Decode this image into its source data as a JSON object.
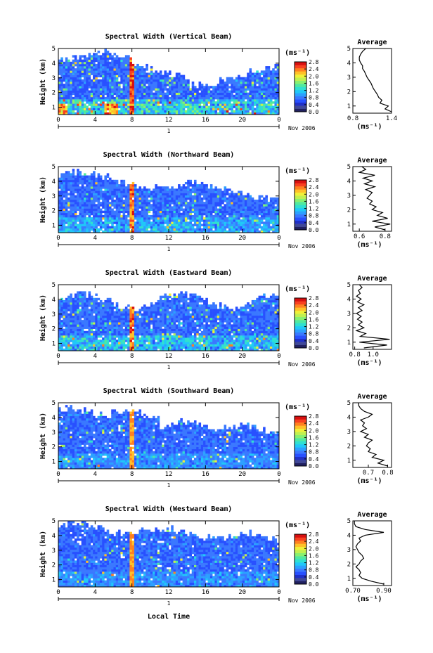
{
  "colormap": [
    "#202060",
    "#404898",
    "#2030c8",
    "#2850ff",
    "#3a78ff",
    "#2ca0ff",
    "#20c8f8",
    "#30e0d0",
    "#50e8a0",
    "#88f070",
    "#c0f050",
    "#f0f038",
    "#ffc028",
    "#ff8020",
    "#f84020",
    "#d81010"
  ],
  "xaxis_label": "Local Time",
  "date_label": "Nov 2006",
  "day_label": "1",
  "chart_data": [
    {
      "type": "heatmap",
      "title": "Spectral Width (Vertical Beam)",
      "ylabel": "Height (km)",
      "xlim": [
        0,
        24
      ],
      "ylim": [
        0.5,
        5
      ],
      "xticks": [
        "0",
        "4",
        "8",
        "12",
        "16",
        "20",
        "0"
      ],
      "yticks": [
        "1",
        "2",
        "3",
        "4",
        "5"
      ],
      "colorbar": {
        "unit": "(ms⁻¹)",
        "min": 0,
        "max": 2.8,
        "ticks": [
          "2.8",
          "2.4",
          "2.0",
          "1.6",
          "1.2",
          "0.8",
          "0.4",
          "0.0"
        ]
      },
      "avg_profile": {
        "title": "Average",
        "xlabel": "(ms⁻¹)",
        "xticks": [
          "0.8",
          "1.4"
        ],
        "xlim": [
          0.8,
          1.4
        ],
        "ylim": [
          0.5,
          5
        ],
        "heights": [
          0.6,
          0.8,
          1.0,
          1.2,
          1.4,
          1.6,
          1.8,
          2.0,
          2.2,
          2.4,
          2.6,
          2.8,
          3.0,
          3.2,
          3.4,
          3.6,
          3.8,
          4.0,
          4.2,
          4.4,
          4.6,
          4.8,
          5.0
        ],
        "values": [
          1.4,
          1.3,
          1.35,
          1.22,
          1.25,
          1.2,
          1.18,
          1.15,
          1.12,
          1.1,
          1.08,
          1.05,
          1.02,
          1.0,
          0.98,
          0.95,
          0.95,
          0.92,
          0.9,
          0.9,
          0.92,
          0.95,
          1.0
        ]
      }
    },
    {
      "type": "heatmap",
      "title": "Spectral Width (Northward Beam)",
      "ylabel": "Height (km)",
      "xlim": [
        0,
        24
      ],
      "ylim": [
        0.5,
        5
      ],
      "xticks": [
        "0",
        "4",
        "8",
        "12",
        "16",
        "20",
        "0"
      ],
      "yticks": [
        "1",
        "2",
        "3",
        "4",
        "5"
      ],
      "colorbar": {
        "unit": "(ms⁻¹)",
        "min": 0,
        "max": 2.8,
        "ticks": [
          "2.8",
          "2.4",
          "2.0",
          "1.6",
          "1.2",
          "0.8",
          "0.4",
          "0.0"
        ]
      },
      "avg_profile": {
        "title": "Average",
        "xlabel": "(ms⁻¹)",
        "xticks": [
          "0.6",
          "0.8"
        ],
        "xlim": [
          0.55,
          0.85
        ],
        "ylim": [
          0.5,
          5
        ],
        "heights": [
          0.6,
          0.8,
          1.0,
          1.2,
          1.4,
          1.6,
          1.8,
          2.0,
          2.2,
          2.4,
          2.6,
          2.8,
          3.0,
          3.2,
          3.4,
          3.6,
          3.8,
          4.0,
          4.2,
          4.4,
          4.6,
          4.8,
          5.0
        ],
        "values": [
          0.8,
          0.72,
          0.84,
          0.7,
          0.82,
          0.74,
          0.78,
          0.7,
          0.73,
          0.68,
          0.7,
          0.66,
          0.68,
          0.7,
          0.65,
          0.72,
          0.64,
          0.7,
          0.63,
          0.72,
          0.6,
          0.65,
          0.62
        ]
      }
    },
    {
      "type": "heatmap",
      "title": "Spectral Width (Eastward Beam)",
      "ylabel": "Height (km)",
      "xlim": [
        0,
        24
      ],
      "ylim": [
        0.5,
        5
      ],
      "xticks": [
        "0",
        "4",
        "8",
        "12",
        "16",
        "20",
        "0"
      ],
      "yticks": [
        "1",
        "2",
        "3",
        "4",
        "5"
      ],
      "colorbar": {
        "unit": "(ms⁻¹)",
        "min": 0,
        "max": 2.8,
        "ticks": [
          "2.8",
          "2.4",
          "2.0",
          "1.6",
          "1.2",
          "0.8",
          "0.4",
          "0.0"
        ]
      },
      "avg_profile": {
        "title": "Average",
        "xlabel": "(ms⁻¹)",
        "xticks": [
          "0.8",
          "1.0"
        ],
        "xlim": [
          0.78,
          1.2
        ],
        "ylim": [
          0.5,
          5
        ],
        "heights": [
          0.6,
          0.8,
          1.0,
          1.2,
          1.4,
          1.6,
          1.8,
          2.0,
          2.2,
          2.4,
          2.6,
          2.8,
          3.0,
          3.2,
          3.4,
          3.6,
          3.8,
          4.0,
          4.2,
          4.4,
          4.6,
          4.8,
          5.0
        ],
        "values": [
          0.9,
          1.15,
          0.85,
          1.18,
          0.86,
          0.92,
          0.82,
          0.9,
          0.84,
          0.88,
          0.83,
          0.87,
          0.82,
          0.88,
          0.84,
          0.9,
          0.83,
          0.87,
          0.82,
          0.86,
          0.84,
          0.88,
          0.85
        ]
      }
    },
    {
      "type": "heatmap",
      "title": "Spectral Width (Southward Beam)",
      "ylabel": "Height (km)",
      "xlim": [
        0,
        24
      ],
      "ylim": [
        0.5,
        5
      ],
      "xticks": [
        "0",
        "4",
        "8",
        "12",
        "16",
        "20",
        "0"
      ],
      "yticks": [
        "1",
        "2",
        "3",
        "4",
        "5"
      ],
      "colorbar": {
        "unit": "(ms⁻¹)",
        "min": 0,
        "max": 2.8,
        "ticks": [
          "2.8",
          "2.4",
          "2.0",
          "1.6",
          "1.2",
          "0.8",
          "0.4",
          "0.0"
        ]
      },
      "avg_profile": {
        "title": "Average",
        "xlabel": "(ms⁻¹)",
        "xticks": [
          "0.7",
          "0.8"
        ],
        "xlim": [
          0.62,
          0.82
        ],
        "ylim": [
          0.5,
          5
        ],
        "heights": [
          0.6,
          0.8,
          1.0,
          1.2,
          1.4,
          1.6,
          1.8,
          2.0,
          2.2,
          2.4,
          2.6,
          2.8,
          3.0,
          3.2,
          3.4,
          3.6,
          3.8,
          4.0,
          4.2,
          4.4,
          4.6,
          4.8,
          5.0
        ],
        "values": [
          0.8,
          0.75,
          0.78,
          0.72,
          0.74,
          0.7,
          0.71,
          0.69,
          0.7,
          0.72,
          0.68,
          0.7,
          0.66,
          0.69,
          0.67,
          0.68,
          0.66,
          0.7,
          0.72,
          0.68,
          0.66,
          0.65,
          0.65
        ]
      }
    },
    {
      "type": "heatmap",
      "title": "Spectral Width (Westward Beam)",
      "ylabel": "Height (km)",
      "xlim": [
        0,
        24
      ],
      "ylim": [
        0.5,
        5
      ],
      "xticks": [
        "0",
        "4",
        "8",
        "12",
        "16",
        "20",
        "0"
      ],
      "yticks": [
        "1",
        "2",
        "3",
        "4",
        "5"
      ],
      "colorbar": {
        "unit": "(ms⁻¹)",
        "min": 0,
        "max": 2.8,
        "ticks": [
          "2.8",
          "2.4",
          "2.0",
          "1.6",
          "1.2",
          "0.8",
          "0.4",
          "0.0"
        ]
      },
      "avg_profile": {
        "title": "Average",
        "xlabel": "(ms⁻¹)",
        "xticks": [
          "0.70",
          "0.90"
        ],
        "xlim": [
          0.7,
          0.95
        ],
        "ylim": [
          0.5,
          5
        ],
        "heights": [
          0.6,
          0.8,
          1.0,
          1.2,
          1.4,
          1.6,
          1.8,
          2.0,
          2.2,
          2.4,
          2.6,
          2.8,
          3.0,
          3.2,
          3.4,
          3.6,
          3.8,
          4.0,
          4.2,
          4.4,
          4.6,
          4.8,
          5.0
        ],
        "values": [
          0.9,
          0.82,
          0.76,
          0.74,
          0.75,
          0.74,
          0.72,
          0.74,
          0.75,
          0.77,
          0.76,
          0.74,
          0.73,
          0.72,
          0.73,
          0.75,
          0.74,
          0.78,
          0.9,
          0.78,
          0.72,
          0.71,
          0.71
        ]
      }
    }
  ]
}
